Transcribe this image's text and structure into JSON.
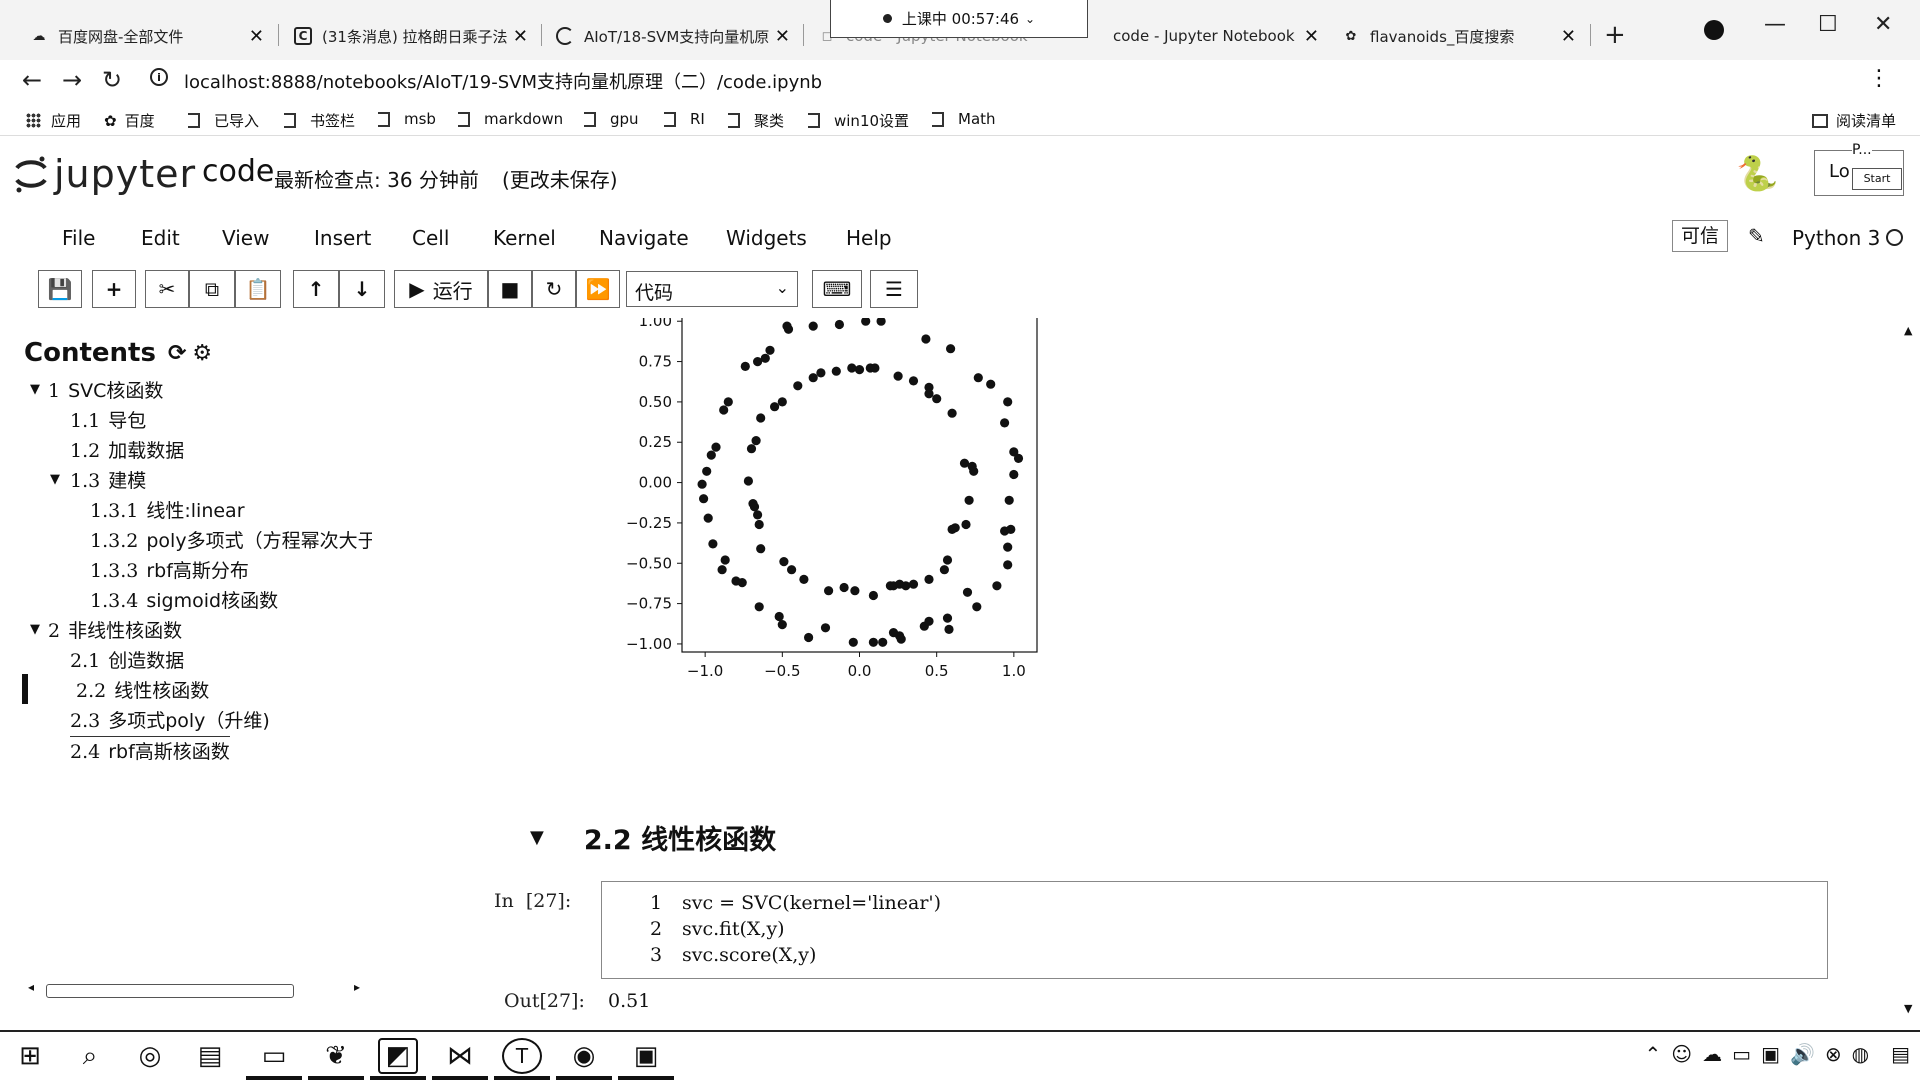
{
  "browser": {
    "tabs": [
      {
        "title": "百度网盘-全部文件",
        "icon": "baidu-pan-icon"
      },
      {
        "title": "(31条消息) 拉格朗日乘子法",
        "icon": "csdn-icon"
      },
      {
        "title": "AIoT/18-SVM支持向量机原",
        "icon": "loading-icon"
      },
      {
        "title": "code - Jupyter Notebook",
        "icon": "jupyter-icon"
      },
      {
        "title": "flavanoids_百度搜索",
        "icon": "baidu-paw-icon"
      }
    ],
    "hidden_tab_fragment": "code - Jupyter Notebook",
    "timer": "上课中 00:57:46",
    "url": "localhost:8888/notebooks/AIoT/19-SVM支持向量机原理（二）/code.ipynb",
    "bookmarks": [
      "应用",
      "百度",
      "已导入",
      "书签栏",
      "msb",
      "markdown",
      "gpu",
      "RI",
      "聚类",
      "win10设置",
      "Math"
    ],
    "reading_list": "阅读清单"
  },
  "jupyter": {
    "logo_text": "jupyter",
    "notebook_name": "code",
    "checkpoint": "最新检查点: 36 分钟前",
    "unsaved": "(更改未保存)",
    "logout_label": "Lo",
    "popup_title": "P...",
    "popup_start": "Start",
    "menu": [
      "File",
      "Edit",
      "View",
      "Insert",
      "Cell",
      "Kernel",
      "Navigate",
      "Widgets",
      "Help"
    ],
    "trusted": "可信",
    "kernel": "Python 3",
    "run_label": "运行",
    "cell_type": "代码"
  },
  "toc": {
    "title": "Contents",
    "items": [
      {
        "num": "1",
        "text": "SVC核函数"
      },
      {
        "num": "1.1",
        "text": "导包"
      },
      {
        "num": "1.2",
        "text": "加载数据"
      },
      {
        "num": "1.3",
        "text": "建模"
      },
      {
        "num": "1.3.1",
        "text": "线性:linear"
      },
      {
        "num": "1.3.2",
        "text": "poly多项式（方程幂次大于"
      },
      {
        "num": "1.3.3",
        "text": "rbf高斯分布"
      },
      {
        "num": "1.3.4",
        "text": "sigmoid核函数"
      },
      {
        "num": "2",
        "text": "非线性核函数"
      },
      {
        "num": "2.1",
        "text": "创造数据"
      },
      {
        "num": "2.2",
        "text": "线性核函数"
      },
      {
        "num": "2.3",
        "text": "多项式poly（升维)"
      },
      {
        "num": "2.4",
        "text": "rbf高斯核函数"
      }
    ]
  },
  "notebook": {
    "section_num": "2.2",
    "section_title": "线性核函数",
    "in_prompt": "In  [27]:",
    "out_prompt": "Out[27]:",
    "code_lines": [
      {
        "n": "1",
        "code": "svc = SVC(kernel='linear')"
      },
      {
        "n": "2",
        "code": "svc.fit(X,y)"
      },
      {
        "n": "3",
        "code": "svc.score(X,y)"
      }
    ],
    "output": "0.51"
  },
  "chart_data": {
    "type": "scatter",
    "title": "",
    "xlabel": "",
    "ylabel": "",
    "xlim": [
      -1.15,
      1.15
    ],
    "ylim": [
      -1.05,
      1.02
    ],
    "xticks": [
      "−1.0",
      "−0.5",
      "0.0",
      "0.5",
      "1.0"
    ],
    "xtick_values": [
      -1.0,
      -0.5,
      0.0,
      0.5,
      1.0
    ],
    "yticks": [
      "1.00",
      "0.75",
      "0.50",
      "0.25",
      "0.00",
      "−0.25",
      "−0.50",
      "−0.75",
      "−1.00"
    ],
    "ytick_values": [
      1.0,
      0.75,
      0.5,
      0.25,
      0.0,
      -0.25,
      -0.5,
      -0.75,
      -1.0
    ],
    "marker_color": "#111111",
    "series": [
      {
        "points": [
          [
            0.04,
            1.0
          ],
          [
            0.14,
            1.0
          ],
          [
            -0.13,
            0.98
          ],
          [
            -0.3,
            0.97
          ],
          [
            -0.46,
            0.95
          ],
          [
            0.43,
            0.89
          ],
          [
            0.59,
            0.83
          ],
          [
            -0.61,
            0.77
          ],
          [
            -0.58,
            0.82
          ],
          [
            -0.74,
            0.72
          ],
          [
            0.77,
            0.65
          ],
          [
            0.85,
            0.61
          ],
          [
            -0.85,
            0.5
          ],
          [
            -0.88,
            0.45
          ],
          [
            0.94,
            0.37
          ],
          [
            -0.93,
            0.22
          ],
          [
            -0.96,
            0.17
          ],
          [
            1.0,
            0.19
          ],
          [
            1.03,
            0.15
          ],
          [
            -1.02,
            -0.01
          ],
          [
            1.0,
            0.05
          ],
          [
            -1.01,
            -0.1
          ],
          [
            0.97,
            -0.11
          ],
          [
            -0.98,
            -0.22
          ],
          [
            0.94,
            -0.3
          ],
          [
            -0.95,
            -0.38
          ],
          [
            0.96,
            -0.4
          ],
          [
            -0.87,
            -0.48
          ],
          [
            0.96,
            -0.51
          ],
          [
            -0.8,
            -0.61
          ],
          [
            0.89,
            -0.64
          ],
          [
            -0.76,
            -0.62
          ],
          [
            -0.65,
            -0.77
          ],
          [
            0.76,
            -0.77
          ],
          [
            -0.5,
            -0.88
          ],
          [
            0.57,
            -0.84
          ],
          [
            0.58,
            -0.91
          ],
          [
            -0.33,
            -0.96
          ],
          [
            0.26,
            -0.95
          ],
          [
            -0.22,
            -0.9
          ],
          [
            0.27,
            -0.97
          ],
          [
            0.15,
            -0.99
          ],
          [
            -0.04,
            -0.99
          ],
          [
            0.09,
            -0.99
          ],
          [
            0.22,
            -0.93
          ],
          [
            0.42,
            -0.89
          ],
          [
            -0.52,
            -0.83
          ],
          [
            0.45,
            -0.86
          ],
          [
            0.7,
            -0.68
          ],
          [
            -0.89,
            -0.54
          ],
          [
            0.98,
            -0.29
          ],
          [
            -0.99,
            0.07
          ],
          [
            0.96,
            0.5
          ],
          [
            -0.47,
            0.97
          ],
          [
            -0.66,
            0.75
          ],
          [
            0.0,
            0.7
          ]
        ]
      },
      {
        "points": [
          [
            0.07,
            0.71
          ],
          [
            0.1,
            0.71
          ],
          [
            -0.05,
            0.71
          ],
          [
            -0.15,
            0.69
          ],
          [
            0.25,
            0.66
          ],
          [
            -0.3,
            0.65
          ],
          [
            0.35,
            0.63
          ],
          [
            -0.4,
            0.6
          ],
          [
            0.45,
            0.55
          ],
          [
            0.5,
            0.52
          ],
          [
            -0.5,
            0.5
          ],
          [
            -0.55,
            0.47
          ],
          [
            -0.64,
            0.4
          ],
          [
            0.6,
            0.43
          ],
          [
            -0.67,
            0.26
          ],
          [
            -0.7,
            0.21
          ],
          [
            0.68,
            0.12
          ],
          [
            0.74,
            0.07
          ],
          [
            0.73,
            0.1
          ],
          [
            -0.72,
            0.01
          ],
          [
            0.71,
            -0.11
          ],
          [
            -0.69,
            -0.13
          ],
          [
            -0.68,
            -0.15
          ],
          [
            0.69,
            -0.26
          ],
          [
            -0.65,
            -0.26
          ],
          [
            0.6,
            -0.29
          ],
          [
            0.62,
            -0.28
          ],
          [
            -0.64,
            -0.41
          ],
          [
            0.57,
            -0.48
          ],
          [
            -0.49,
            -0.49
          ],
          [
            0.55,
            -0.54
          ],
          [
            -0.44,
            -0.54
          ],
          [
            0.45,
            -0.6
          ],
          [
            -0.36,
            -0.6
          ],
          [
            0.35,
            -0.63
          ],
          [
            -0.2,
            -0.67
          ],
          [
            -0.1,
            -0.65
          ],
          [
            -0.03,
            -0.67
          ],
          [
            0.2,
            -0.64
          ],
          [
            0.22,
            -0.64
          ],
          [
            0.3,
            -0.64
          ],
          [
            0.26,
            -0.63
          ],
          [
            0.09,
            -0.7
          ],
          [
            -0.25,
            0.68
          ],
          [
            0.45,
            0.59
          ],
          [
            -0.66,
            -0.2
          ]
        ]
      }
    ]
  }
}
